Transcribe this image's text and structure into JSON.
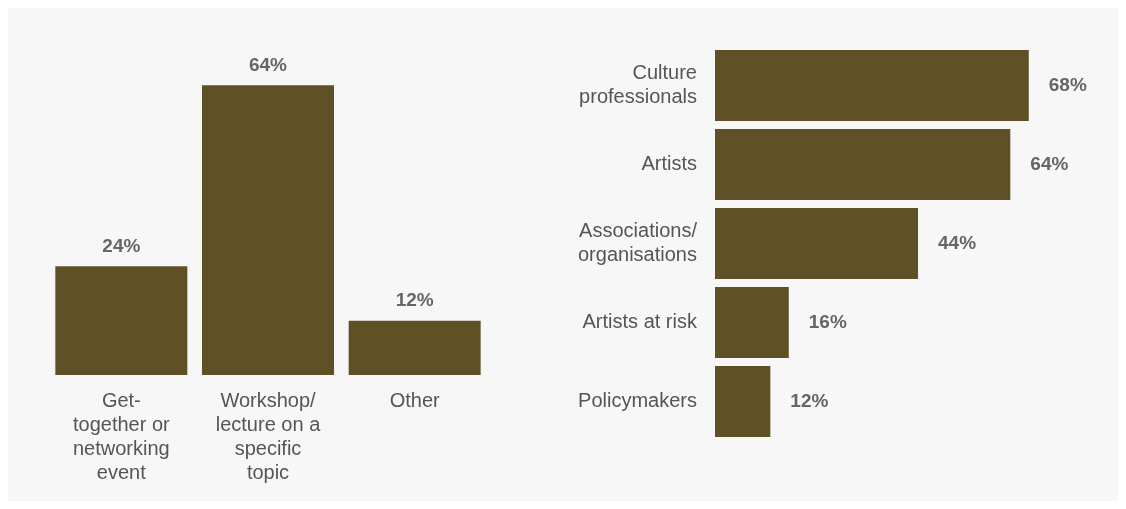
{
  "chart_data": [
    {
      "type": "bar",
      "categories": [
        "Get-together or networking event",
        "Workshop/lecture on a specific topic",
        "Other"
      ],
      "values": [
        24,
        64,
        12
      ],
      "color": "#5f5026",
      "value_labels": [
        "24%",
        "64%",
        "12%"
      ]
    },
    {
      "type": "bar",
      "orientation": "horizontal",
      "categories": [
        "Culture professionals",
        "Artists",
        "Associations/organisations",
        "Artists at risk",
        "Policymakers"
      ],
      "values": [
        68,
        64,
        44,
        16,
        12
      ],
      "color": "#5f5026",
      "value_labels": [
        "68%",
        "64%",
        "44%",
        "16%",
        "12%"
      ]
    }
  ]
}
